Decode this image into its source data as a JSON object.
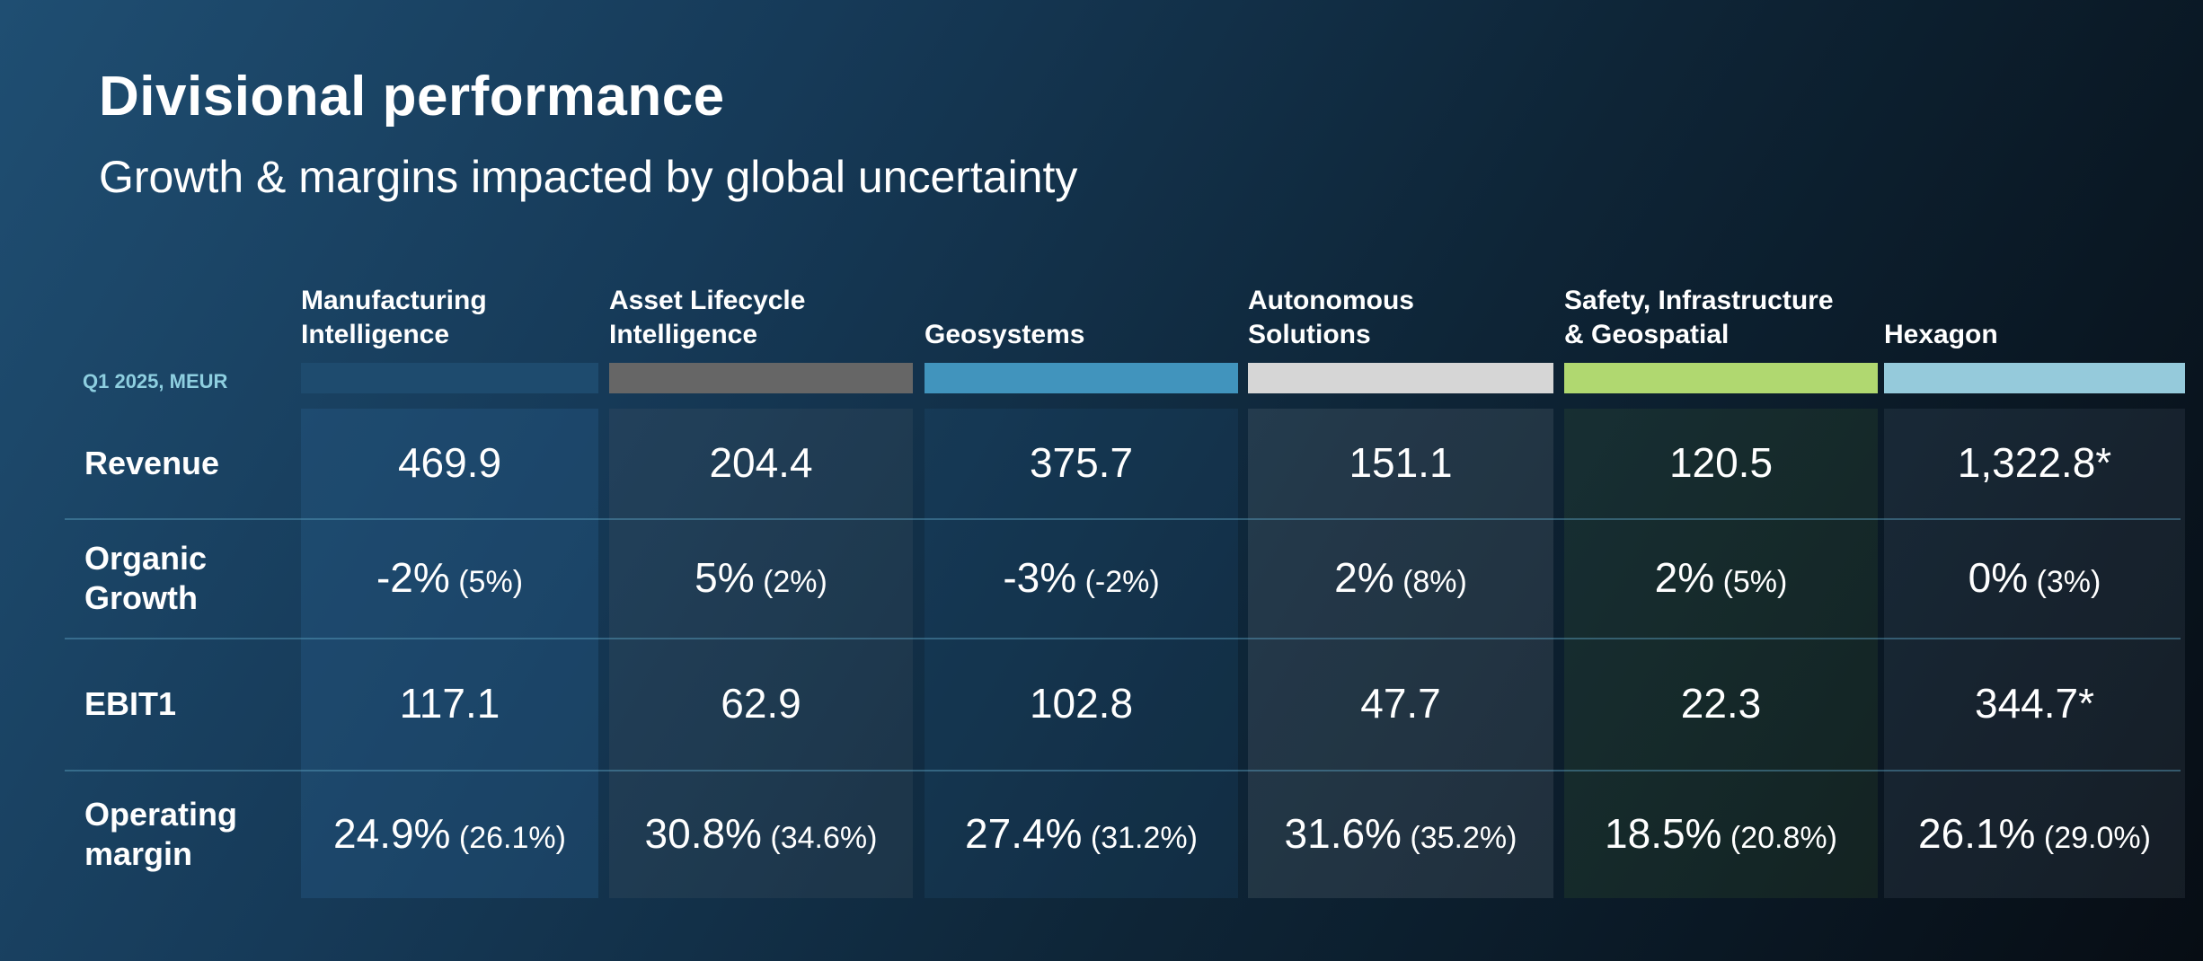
{
  "header": {
    "title": "Divisional performance",
    "subtitle": "Growth & margins impacted by global uncertainty"
  },
  "table": {
    "period_label": "Q1 2025, MEUR",
    "columns": [
      {
        "name": "Manufacturing\nIntelligence",
        "color": "#1e4b6e"
      },
      {
        "name": "Asset Lifecycle\nIntelligence",
        "color": "#666666"
      },
      {
        "name": "Geosystems",
        "color": "#4194bd"
      },
      {
        "name": "Autonomous\nSolutions",
        "color": "#d6d6d6"
      },
      {
        "name": "Safety, Infrastructure\n& Geospatial",
        "color": "#b0d870"
      },
      {
        "name": "Hexagon",
        "color": "#95cadb"
      }
    ],
    "rows": [
      {
        "label": "Revenue",
        "cells": [
          {
            "value": "469.9",
            "prior": ""
          },
          {
            "value": "204.4",
            "prior": ""
          },
          {
            "value": "375.7",
            "prior": ""
          },
          {
            "value": "151.1",
            "prior": ""
          },
          {
            "value": "120.5",
            "prior": ""
          },
          {
            "value": "1,322.8*",
            "prior": ""
          }
        ]
      },
      {
        "label": "Organic\nGrowth",
        "cells": [
          {
            "value": "-2%",
            "prior": "(5%)"
          },
          {
            "value": "5%",
            "prior": "(2%)"
          },
          {
            "value": "-3%",
            "prior": "(-2%)"
          },
          {
            "value": "2%",
            "prior": "(8%)"
          },
          {
            "value": "2%",
            "prior": "(5%)"
          },
          {
            "value": "0%",
            "prior": "(3%)"
          }
        ]
      },
      {
        "label": "EBIT1",
        "cells": [
          {
            "value": "117.1",
            "prior": ""
          },
          {
            "value": "62.9",
            "prior": ""
          },
          {
            "value": "102.8",
            "prior": ""
          },
          {
            "value": "47.7",
            "prior": ""
          },
          {
            "value": "22.3",
            "prior": ""
          },
          {
            "value": "344.7*",
            "prior": ""
          }
        ]
      },
      {
        "label": "Operating\nmargin",
        "cells": [
          {
            "value": "24.9%",
            "prior": "(26.1%)"
          },
          {
            "value": "30.8%",
            "prior": "(34.6%)"
          },
          {
            "value": "27.4%",
            "prior": "(31.2%)"
          },
          {
            "value": "31.6%",
            "prior": "(35.2%)"
          },
          {
            "value": "18.5%",
            "prior": "(20.8%)"
          },
          {
            "value": "26.1%",
            "prior": "(29.0%)"
          }
        ]
      }
    ]
  }
}
